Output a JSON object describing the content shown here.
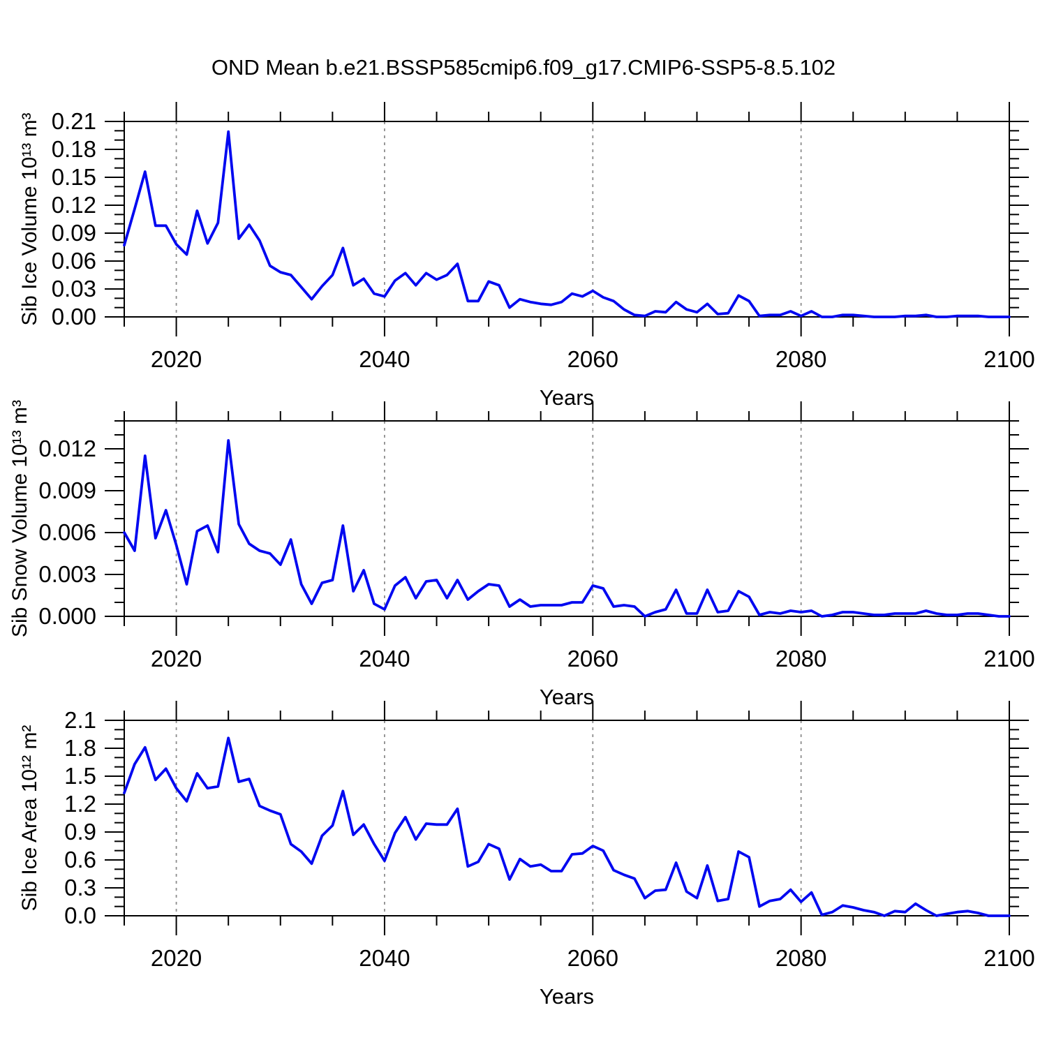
{
  "line_color": "#0008f0",
  "chart_data": {
    "type": "line",
    "title": "OND Mean b.e21.BSSP585cmip6.f09_g17.CMIP6-SSP5-8.5.102",
    "x_label": "Years",
    "x_axis": {
      "xlim": [
        2015,
        2100
      ],
      "major_ticks": [
        2020,
        2040,
        2060,
        2080,
        2100
      ],
      "major_tick_labels": [
        "2020",
        "2040",
        "2060",
        "2080",
        "2100"
      ],
      "minor_step": 5,
      "gridline_years": [
        2020,
        2040,
        2060,
        2080
      ]
    },
    "x": [
      2015,
      2016,
      2017,
      2018,
      2019,
      2020,
      2021,
      2022,
      2023,
      2024,
      2025,
      2026,
      2027,
      2028,
      2029,
      2030,
      2031,
      2032,
      2033,
      2034,
      2035,
      2036,
      2037,
      2038,
      2039,
      2040,
      2041,
      2042,
      2043,
      2044,
      2045,
      2046,
      2047,
      2048,
      2049,
      2050,
      2051,
      2052,
      2053,
      2054,
      2055,
      2056,
      2057,
      2058,
      2059,
      2060,
      2061,
      2062,
      2063,
      2064,
      2065,
      2066,
      2067,
      2068,
      2069,
      2070,
      2071,
      2072,
      2073,
      2074,
      2075,
      2076,
      2077,
      2078,
      2079,
      2080,
      2081,
      2082,
      2083,
      2084,
      2085,
      2086,
      2087,
      2088,
      2089,
      2090,
      2091,
      2092,
      2093,
      2094,
      2095,
      2096,
      2097,
      2098,
      2099,
      2100
    ],
    "panels": [
      {
        "name": "sib-ice-volume",
        "ylabel": "Sib Ice Volume 10¹³ m³",
        "ylim": [
          0,
          0.21
        ],
        "y_major_ticks": [
          0.0,
          0.03,
          0.06,
          0.09,
          0.12,
          0.15,
          0.18,
          0.21
        ],
        "y_tick_labels": [
          "0.00",
          "0.03",
          "0.06",
          "0.09",
          "0.12",
          "0.15",
          "0.18",
          "0.21"
        ],
        "y_minor_step": 0.01,
        "values": [
          0.077,
          0.116,
          0.156,
          0.098,
          0.098,
          0.078,
          0.067,
          0.114,
          0.079,
          0.101,
          0.199,
          0.084,
          0.099,
          0.082,
          0.055,
          0.048,
          0.045,
          0.032,
          0.019,
          0.033,
          0.045,
          0.074,
          0.034,
          0.041,
          0.025,
          0.022,
          0.039,
          0.047,
          0.034,
          0.047,
          0.04,
          0.045,
          0.057,
          0.017,
          0.017,
          0.038,
          0.034,
          0.01,
          0.019,
          0.016,
          0.014,
          0.013,
          0.016,
          0.025,
          0.022,
          0.028,
          0.021,
          0.017,
          0.008,
          0.002,
          0.001,
          0.006,
          0.005,
          0.016,
          0.008,
          0.005,
          0.014,
          0.003,
          0.004,
          0.023,
          0.017,
          0.001,
          0.002,
          0.002,
          0.006,
          0.001,
          0.006,
          0.0,
          0.0,
          0.002,
          0.002,
          0.001,
          0.0,
          0.0,
          0.0,
          0.001,
          0.001,
          0.002,
          0.0,
          0.0,
          0.001,
          0.001,
          0.001,
          0.0,
          0.0,
          0.0
        ]
      },
      {
        "name": "sib-snow-volume",
        "ylabel": "Sib Snow Volume 10¹³ m³",
        "ylim": [
          0,
          0.014
        ],
        "y_major_ticks": [
          0.0,
          0.003,
          0.006,
          0.009,
          0.012
        ],
        "y_tick_labels": [
          "0.000",
          "0.003",
          "0.006",
          "0.009",
          "0.012"
        ],
        "y_minor_step": 0.001,
        "values": [
          0.006,
          0.0047,
          0.0115,
          0.0056,
          0.0076,
          0.0051,
          0.0023,
          0.0061,
          0.0065,
          0.0046,
          0.0126,
          0.0066,
          0.0052,
          0.0047,
          0.0045,
          0.0037,
          0.0055,
          0.0023,
          0.0009,
          0.0024,
          0.0026,
          0.0065,
          0.0018,
          0.0033,
          0.0009,
          0.0005,
          0.0022,
          0.0028,
          0.0013,
          0.0025,
          0.0026,
          0.0013,
          0.0026,
          0.0012,
          0.0018,
          0.0023,
          0.0022,
          0.0007,
          0.0012,
          0.0007,
          0.0008,
          0.0008,
          0.0008,
          0.001,
          0.001,
          0.0022,
          0.002,
          0.0007,
          0.0008,
          0.0007,
          0.0,
          0.0003,
          0.0005,
          0.0019,
          0.0002,
          0.0002,
          0.0019,
          0.0003,
          0.0004,
          0.0018,
          0.0014,
          0.0001,
          0.0003,
          0.0002,
          0.0004,
          0.0003,
          0.0004,
          0.0,
          0.0001,
          0.0003,
          0.0003,
          0.0002,
          0.0001,
          0.0001,
          0.0002,
          0.0002,
          0.0002,
          0.0004,
          0.0002,
          0.0001,
          0.0001,
          0.0002,
          0.0002,
          0.0001,
          0.0,
          0.0
        ]
      },
      {
        "name": "sib-ice-area",
        "ylabel": "Sib Ice Area 10¹² m²",
        "ylim": [
          0,
          2.1
        ],
        "y_major_ticks": [
          0.0,
          0.3,
          0.6,
          0.9,
          1.2,
          1.5,
          1.8,
          2.1
        ],
        "y_tick_labels": [
          "0.0",
          "0.3",
          "0.6",
          "0.9",
          "1.2",
          "1.5",
          "1.8",
          "2.1"
        ],
        "y_minor_step": 0.1,
        "values": [
          1.32,
          1.63,
          1.81,
          1.46,
          1.58,
          1.37,
          1.23,
          1.53,
          1.37,
          1.39,
          1.91,
          1.44,
          1.47,
          1.18,
          1.13,
          1.09,
          0.77,
          0.69,
          0.56,
          0.86,
          0.97,
          1.34,
          0.87,
          0.98,
          0.77,
          0.59,
          0.89,
          1.06,
          0.82,
          0.99,
          0.98,
          0.98,
          1.15,
          0.53,
          0.58,
          0.77,
          0.72,
          0.39,
          0.61,
          0.53,
          0.55,
          0.48,
          0.48,
          0.66,
          0.67,
          0.75,
          0.7,
          0.49,
          0.44,
          0.4,
          0.19,
          0.27,
          0.28,
          0.57,
          0.26,
          0.19,
          0.54,
          0.16,
          0.18,
          0.69,
          0.63,
          0.1,
          0.16,
          0.18,
          0.28,
          0.15,
          0.25,
          0.01,
          0.04,
          0.11,
          0.09,
          0.06,
          0.04,
          0.0,
          0.05,
          0.04,
          0.13,
          0.06,
          0.0,
          0.02,
          0.04,
          0.05,
          0.03,
          0.0,
          0.0,
          0.0
        ]
      }
    ]
  }
}
